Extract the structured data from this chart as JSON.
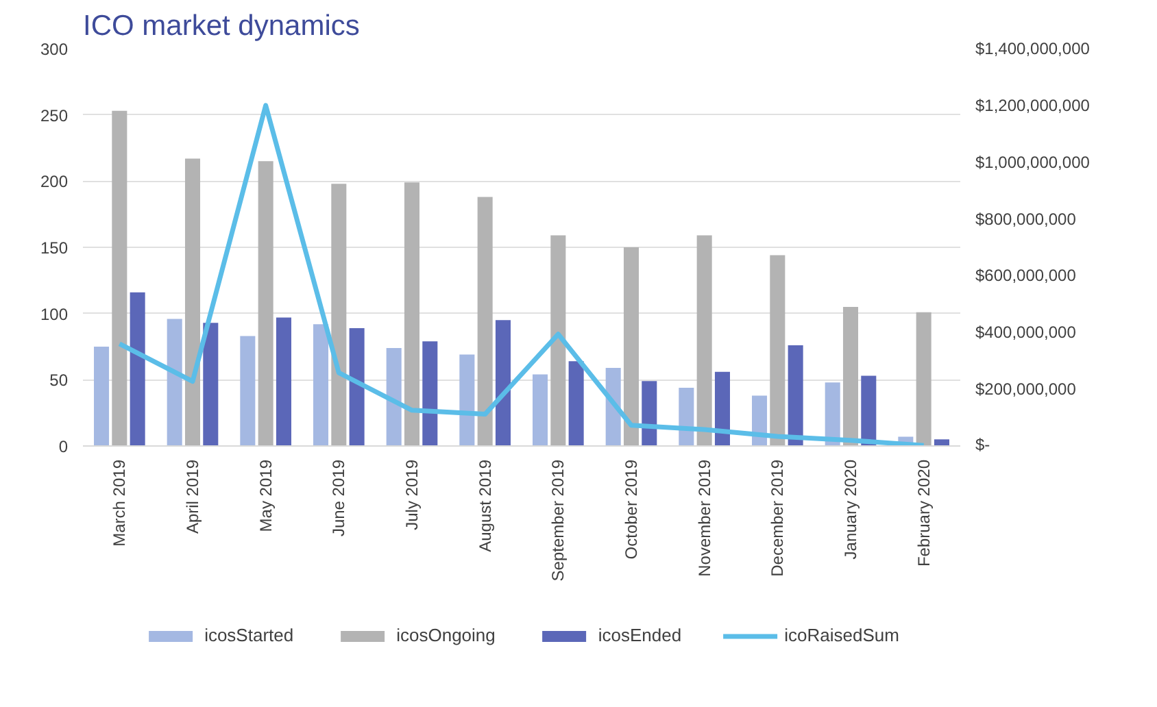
{
  "chart_data": {
    "type": "bar",
    "title": "ICO market dynamics",
    "categories": [
      "March 2019",
      "April 2019",
      "May 2019",
      "June 2019",
      "July 2019",
      "August 2019",
      "September 2019",
      "October 2019",
      "November 2019",
      "December 2019",
      "January 2020",
      "February 2020"
    ],
    "series": [
      {
        "name": "icosStarted",
        "color": "#a4b8e2",
        "values": [
          75,
          96,
          83,
          92,
          74,
          69,
          54,
          59,
          44,
          38,
          48,
          7
        ]
      },
      {
        "name": "icosOngoing",
        "color": "#b3b3b3",
        "values": [
          253,
          217,
          215,
          198,
          199,
          188,
          159,
          150,
          159,
          144,
          105,
          101
        ]
      },
      {
        "name": "icosEnded",
        "color": "#5b67b8",
        "values": [
          116,
          93,
          97,
          89,
          79,
          95,
          64,
          49,
          56,
          76,
          53,
          5
        ]
      },
      {
        "name": "icoRaisedSum",
        "type": "line",
        "axis": "y2",
        "color": "#5bbde8",
        "values": [
          360000000,
          228000000,
          1200000000,
          258000000,
          126000000,
          112000000,
          394000000,
          73000000,
          58000000,
          34000000,
          20000000,
          2000000
        ]
      }
    ],
    "ylim": [
      0,
      300
    ],
    "yticks": [
      0,
      50,
      100,
      150,
      200,
      250,
      300
    ],
    "y2lim": [
      0,
      1400000000
    ],
    "y2ticks": [
      {
        "value": 0,
        "label": "$-"
      },
      {
        "value": 200000000,
        "label": "$200,000,000"
      },
      {
        "value": 400000000,
        "label": "$400,000,000"
      },
      {
        "value": 600000000,
        "label": "$600,000,000"
      },
      {
        "value": 800000000,
        "label": "$800,000,000"
      },
      {
        "value": 1000000000,
        "label": "$1,000,000,000"
      },
      {
        "value": 1200000000,
        "label": "$1,200,000,000"
      },
      {
        "value": 1400000000,
        "label": "$1,400,000,000"
      }
    ],
    "grid": "y",
    "legend": "bottom",
    "marker": "none",
    "line_style": "solid"
  }
}
